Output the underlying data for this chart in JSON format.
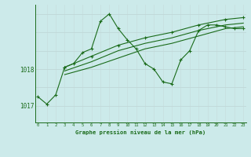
{
  "background_color": "#cceaea",
  "grid_color_v": "#c8e0e0",
  "grid_color_h": "#c0d8d8",
  "line_color": "#1a6b1a",
  "title": "Graphe pression niveau de la mer (hPa)",
  "ylabel_ticks": [
    1017,
    1018
  ],
  "xlim": [
    -0.3,
    23.3
  ],
  "ylim": [
    1016.55,
    1019.75
  ],
  "line1_x": [
    0,
    1,
    2,
    3,
    4,
    5,
    6,
    7,
    8,
    9,
    10,
    11,
    12,
    13,
    14,
    15,
    16,
    17,
    18,
    19,
    20,
    21,
    22,
    23
  ],
  "line1_y": [
    1017.25,
    1017.05,
    1017.3,
    1018.05,
    1018.15,
    1018.45,
    1018.55,
    1019.3,
    1019.5,
    1019.1,
    1018.8,
    1018.55,
    1018.15,
    1018.0,
    1017.65,
    1017.6,
    1018.25,
    1018.5,
    1019.05,
    1019.2,
    1019.2,
    1019.15,
    1019.1,
    1019.1
  ],
  "line2_x": [
    3,
    6,
    9,
    12,
    15,
    18,
    21,
    23
  ],
  "line2_y": [
    1018.05,
    1018.35,
    1018.65,
    1018.85,
    1019.0,
    1019.2,
    1019.35,
    1019.4
  ],
  "line3_x": [
    3,
    6,
    9,
    12,
    15,
    18,
    21,
    23
  ],
  "line3_y": [
    1017.95,
    1018.2,
    1018.5,
    1018.7,
    1018.85,
    1019.05,
    1019.2,
    1019.25
  ],
  "line4_x": [
    3,
    6,
    9,
    12,
    15,
    18,
    21,
    23
  ],
  "line4_y": [
    1017.85,
    1018.05,
    1018.3,
    1018.55,
    1018.7,
    1018.9,
    1019.1,
    1019.15
  ]
}
